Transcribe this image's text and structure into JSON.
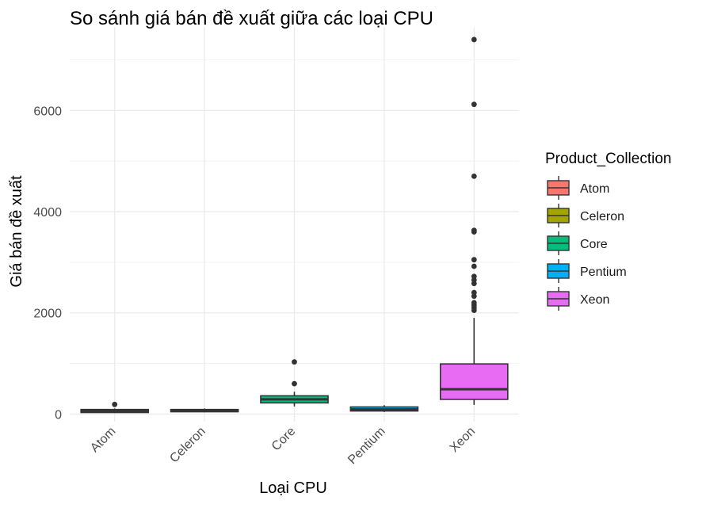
{
  "chart_data": {
    "type": "box",
    "title": "So sánh giá bán đề xuất giữa các loại CPU",
    "xlabel": "Loại CPU",
    "ylabel": "Giá bán đề xuất",
    "ylim": [
      -150,
      7650
    ],
    "yticks": [
      0,
      2000,
      4000,
      6000
    ],
    "grid": true,
    "legend": {
      "title": "Product_Collection",
      "position": "right"
    },
    "categories": [
      "Atom",
      "Celeron",
      "Core",
      "Pentium",
      "Xeon"
    ],
    "series": [
      {
        "name": "Atom",
        "color": "#F8766D",
        "whisker_low": 20,
        "q1": 30,
        "median": 55,
        "q3": 90,
        "whisker_high": 110,
        "outliers": [
          190
        ]
      },
      {
        "name": "Celeron",
        "color": "#A3A500",
        "whisker_low": 35,
        "q1": 45,
        "median": 70,
        "q3": 90,
        "whisker_high": 110,
        "outliers": []
      },
      {
        "name": "Core",
        "color": "#00BF7D",
        "whisker_low": 150,
        "q1": 220,
        "median": 290,
        "q3": 360,
        "whisker_high": 440,
        "outliers": [
          600,
          1030
        ]
      },
      {
        "name": "Pentium",
        "color": "#00B0F6",
        "whisker_low": 40,
        "q1": 60,
        "median": 90,
        "q3": 140,
        "whisker_high": 175,
        "outliers": []
      },
      {
        "name": "Xeon",
        "color": "#E76BF3",
        "whisker_low": 180,
        "q1": 290,
        "median": 490,
        "q3": 990,
        "whisker_high": 1900,
        "outliers": [
          2050,
          2100,
          2150,
          2200,
          2330,
          2400,
          2580,
          2650,
          2720,
          2920,
          3050,
          3600,
          3630,
          4700,
          6120,
          7400
        ]
      }
    ]
  }
}
